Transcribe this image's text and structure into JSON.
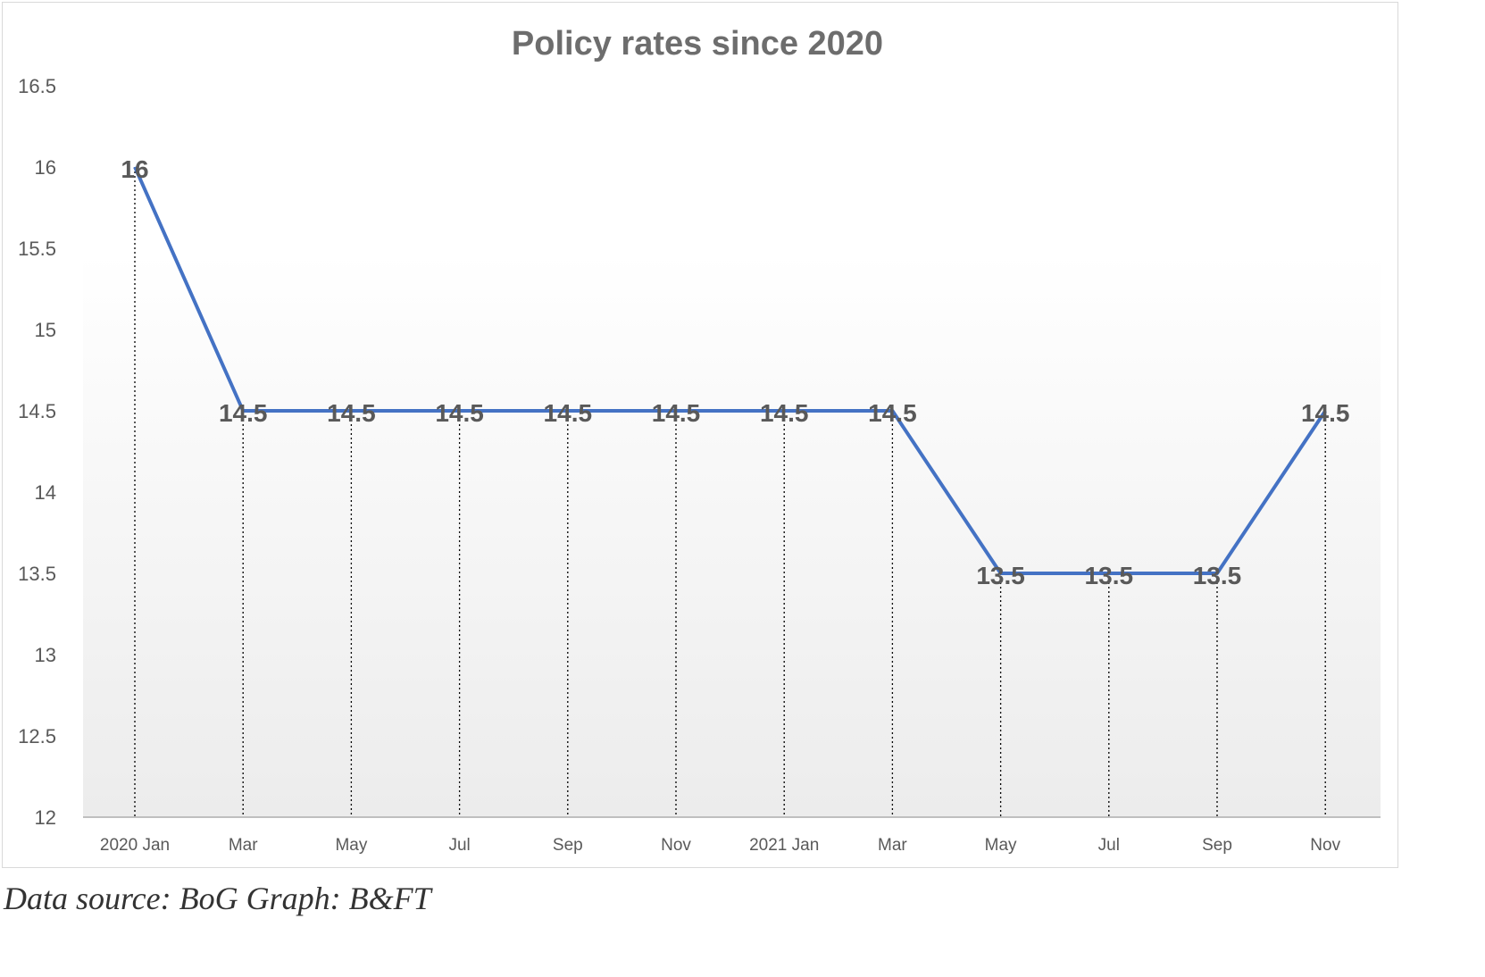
{
  "chart_data": {
    "type": "line",
    "title": "Policy rates since 2020",
    "xlabel": "",
    "ylabel": "",
    "categories": [
      "2020 Jan",
      "Mar",
      "May",
      "Jul",
      "Sep",
      "Nov",
      "2021 Jan",
      "Mar",
      "May",
      "Jul",
      "Sep",
      "Nov"
    ],
    "series": [
      {
        "values": [
          16,
          14.5,
          14.5,
          14.5,
          14.5,
          14.5,
          14.5,
          14.5,
          13.5,
          13.5,
          13.5,
          14.5
        ]
      }
    ],
    "data_labels": [
      "16",
      "14.5",
      "14.5",
      "14.5",
      "14.5",
      "14.5",
      "14.5",
      "14.5",
      "13.5",
      "13.5",
      "13.5",
      "14.5"
    ],
    "ylim": [
      12,
      16.5
    ],
    "yticks": [
      "12",
      "12.5",
      "13",
      "13.5",
      "14",
      "14.5",
      "15",
      "15.5",
      "16",
      "16.5"
    ],
    "grid": false,
    "drop_lines": true,
    "legend": "none",
    "colors": {
      "line": "#4472c4",
      "text": "#595959",
      "title": "#6d6d6d"
    }
  },
  "footer": {
    "source_note": "Data source: BoG  Graph: B&FT"
  }
}
